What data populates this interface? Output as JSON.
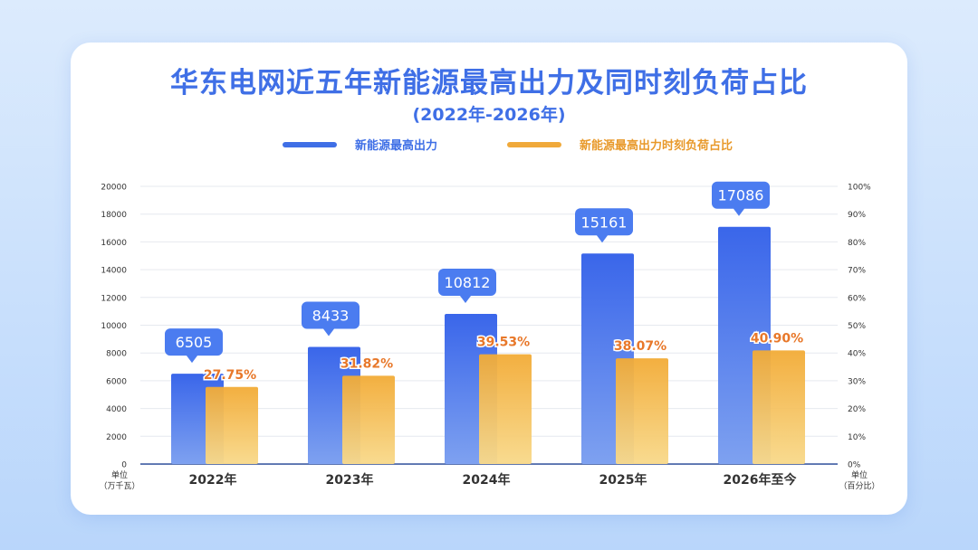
{
  "title": "华东电网近五年新能源最高出力及同时刻负荷占比",
  "subtitle": "(2022年-2026年)",
  "legend": {
    "series1": "新能源最高出力",
    "series2": "新能源最高出力时刻负荷占比"
  },
  "units": {
    "left_line1": "单位",
    "left_line2": "（万千瓦）",
    "right_line1": "单位",
    "right_line2": "（百分比）"
  },
  "colors": {
    "series1": "#3f6fe6",
    "series2": "#f0a93a",
    "accent_label": "#e8782a"
  },
  "chart_data": {
    "type": "bar",
    "categories": [
      "2022年",
      "2023年",
      "2024年",
      "2025年",
      "2026年至今"
    ],
    "series": [
      {
        "name": "新能源最高出力",
        "axis": "left",
        "values": [
          6505,
          8433,
          10812,
          15161,
          17086
        ],
        "labels": [
          "6505",
          "8433",
          "10812",
          "15161",
          "17086"
        ]
      },
      {
        "name": "新能源最高出力时刻负荷占比",
        "axis": "right",
        "values": [
          27.75,
          31.82,
          39.53,
          38.07,
          40.9
        ],
        "labels": [
          "27.75%",
          "31.82%",
          "39.53%",
          "38.07%",
          "40.90%"
        ]
      }
    ],
    "y_left": {
      "ylim": [
        0,
        20000
      ],
      "ticks": [
        "0",
        "2000",
        "4000",
        "6000",
        "8000",
        "10000",
        "12000",
        "14000",
        "16000",
        "18000",
        "20000"
      ]
    },
    "y_right": {
      "ylim": [
        0,
        100
      ],
      "ticks": [
        "0%",
        "10%",
        "20%",
        "30%",
        "40%",
        "50%",
        "60%",
        "70%",
        "80%",
        "90%",
        "100%"
      ]
    },
    "grid": true,
    "legend_position": "top-center"
  }
}
